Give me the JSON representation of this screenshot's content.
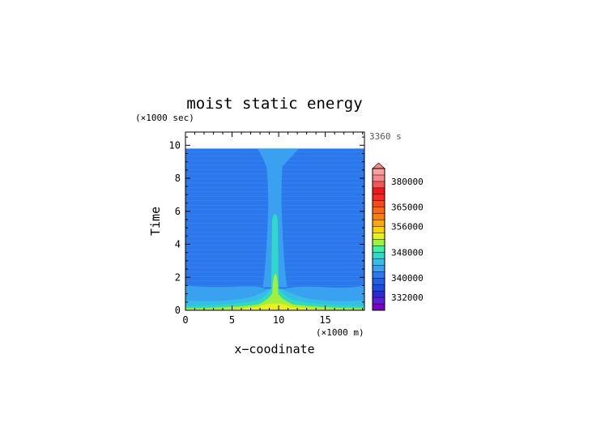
{
  "chart_data": {
    "type": "heatmap",
    "title": "moist static energy",
    "xlabel": "x−coodinate",
    "ylabel": "Time",
    "x_unit": "(×1000 m)",
    "y_unit": "(×1000 sec)",
    "timestamp": "3360 s",
    "xlim": [
      0,
      19.2
    ],
    "ylim": [
      0,
      10.8
    ],
    "x_ticks": [
      "0",
      "5",
      "10",
      "15"
    ],
    "y_ticks": [
      "0",
      "2",
      "4",
      "6",
      "8",
      "10"
    ],
    "data_top_time": 9.8,
    "colorbar": {
      "labels": [
        "332000",
        "340000",
        "348000",
        "356000",
        "365000",
        "380000"
      ],
      "levels": [
        328000,
        330000,
        332000,
        334000,
        337000,
        340000,
        342000,
        344000,
        346000,
        348000,
        350000,
        352000,
        354000,
        356000,
        359000,
        362000,
        365000,
        368000,
        371000,
        375000,
        380000,
        385000,
        390000
      ],
      "colors": [
        "#7a00c8",
        "#5a1fd6",
        "#2a2ad8",
        "#1a4ee0",
        "#2060e8",
        "#2a78ec",
        "#3aa0f0",
        "#38bce8",
        "#30d8c8",
        "#40f0a0",
        "#a0f040",
        "#e8f020",
        "#f8d010",
        "#f8a810",
        "#f88010",
        "#f86818",
        "#f84818",
        "#f82828",
        "#f01818",
        "#f05858",
        "#f88888",
        "#f8a0a0"
      ]
    },
    "colors": {
      "background_field": "#2a78ec",
      "lower_layer": "#3aa0f0",
      "near_surface": "#38bce8",
      "core_green": "#30d8c8",
      "warm_core": "#a0f040",
      "surface_peak": "#e8f020"
    }
  }
}
